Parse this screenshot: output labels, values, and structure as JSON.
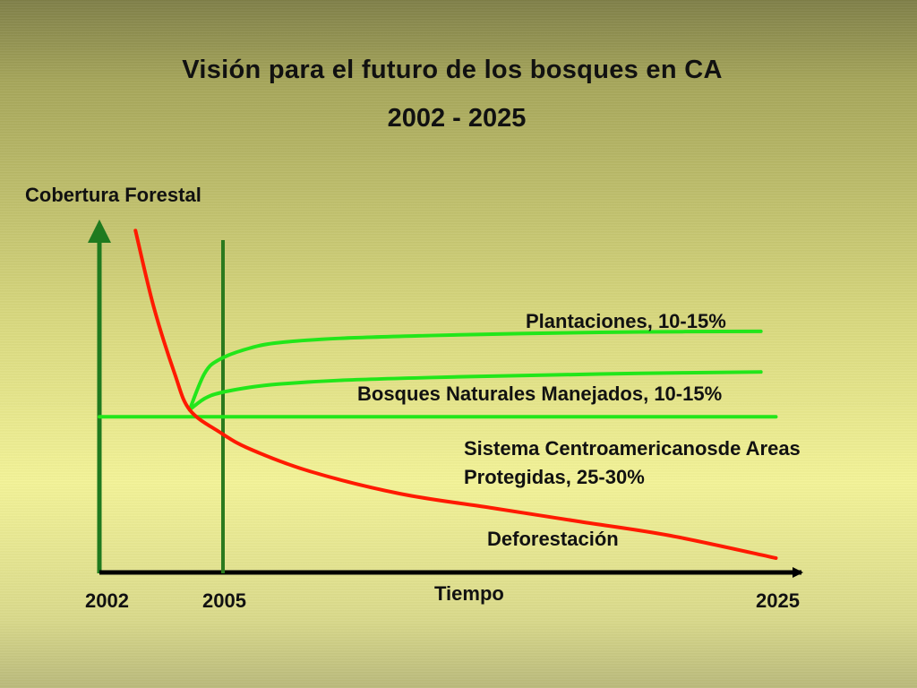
{
  "title": "Visión para el futuro de los bosques en CA",
  "subtitle": "2002 - 2025",
  "colors": {
    "axis_y": "#1f7a1f",
    "axis_x": "#000000",
    "marker_2005": "#2b7a1e",
    "plantaciones": "#22e61a",
    "bosques": "#22e61a",
    "areas": "#22e61a",
    "deforestacion": "#ff1a00"
  },
  "chart_data": {
    "type": "line",
    "xlabel": "Tiempo",
    "ylabel": "Cobertura Forestal",
    "xlim": [
      2002,
      2025
    ],
    "x_ticks": [
      "2002",
      "2005",
      "2025"
    ],
    "grid": false,
    "series": [
      {
        "name": "Plantaciones, 10-15%",
        "x": [
          2005,
          2005.5,
          2006,
          2007,
          2008,
          2010,
          2013,
          2016,
          2020,
          2024
        ],
        "y": [
          53,
          66,
          71,
          75,
          77,
          78.5,
          79.5,
          80.2,
          80.8,
          81
        ]
      },
      {
        "name": "Bosques Naturales Manejados, 10-15%",
        "x": [
          2005,
          2005.5,
          2006,
          2007,
          2008,
          2010,
          2013,
          2016,
          2020,
          2024
        ],
        "y": [
          53,
          57,
          59,
          61,
          62.2,
          63.5,
          64.5,
          65.2,
          66,
          66.5
        ]
      },
      {
        "name": "Sistema Centroamericanosde Areas Protegidas, 25-30%",
        "x": [
          2002,
          2024.5
        ],
        "y": [
          50.5,
          50.5
        ]
      },
      {
        "name": "Deforestación",
        "x": [
          2003.2,
          2003.8,
          2004.5,
          2005,
          2006,
          2007,
          2009,
          2012,
          2015,
          2018,
          2021,
          2024.5
        ],
        "y": [
          117,
          90,
          66,
          53,
          45,
          39,
          31,
          23,
          18,
          13,
          8,
          0
        ]
      }
    ]
  }
}
